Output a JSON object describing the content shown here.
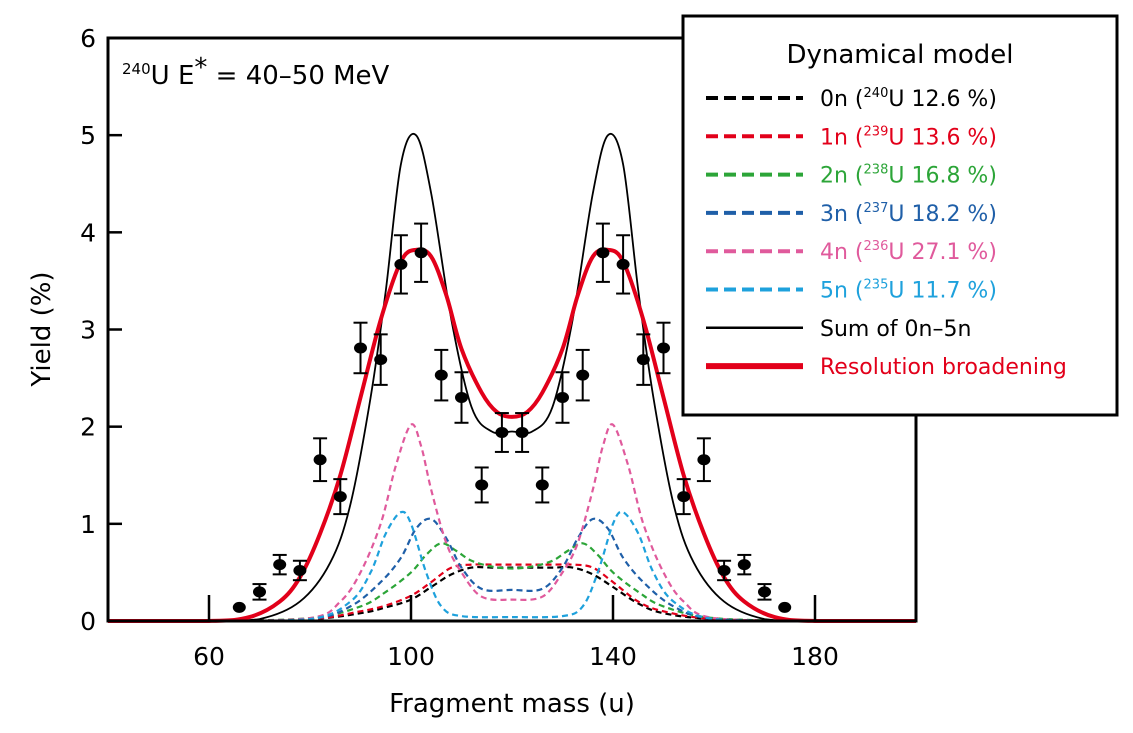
{
  "chart_data": {
    "type": "line",
    "annotation": {
      "nucleus_mass": "240",
      "nucleus": "U",
      "label": "E",
      "superscript": "*",
      "rest": " = 40–50 MeV"
    },
    "xlabel": "Fragment mass (u)",
    "ylabel": "Yield (%)",
    "xlim": [
      40,
      200
    ],
    "ylim": [
      0,
      6
    ],
    "xticks": [
      60,
      100,
      140,
      180
    ],
    "yticks": [
      0,
      1,
      2,
      3,
      4,
      5,
      6
    ],
    "legend": {
      "position": "top-right",
      "title": "Dynamical model",
      "entries": [
        {
          "key": "0n",
          "label": "0n (",
          "sup": "240",
          "rest": "U 12.6 %)",
          "color": "#000000",
          "style": "dashed"
        },
        {
          "key": "1n",
          "label": "1n (",
          "sup": "239",
          "rest": "U 13.6 %)",
          "color": "#e2001a",
          "style": "dashed"
        },
        {
          "key": "2n",
          "label": "2n (",
          "sup": "238",
          "rest": "U 16.8 %)",
          "color": "#2ca538",
          "style": "dashed"
        },
        {
          "key": "3n",
          "label": "3n (",
          "sup": "237",
          "rest": "U 18.2 %)",
          "color": "#1f5fa8",
          "style": "dashed"
        },
        {
          "key": "4n",
          "label": "4n (",
          "sup": "236",
          "rest": "U 27.1 %)",
          "color": "#e05a9c",
          "style": "dashed"
        },
        {
          "key": "5n",
          "label": "5n (",
          "sup": "235",
          "rest": "U 11.7 %)",
          "color": "#1ea1dc",
          "style": "dashed"
        },
        {
          "key": "sum",
          "label": "Sum of 0n–5n",
          "sup": "",
          "rest": "",
          "color": "#000000",
          "style": "solid-thin"
        },
        {
          "key": "res",
          "label": "Resolution broadening",
          "sup": "",
          "rest": "",
          "color": "#e2001a",
          "style": "solid-thick"
        }
      ]
    },
    "series": [
      {
        "key": "0n",
        "x": [
          40,
          60,
          80,
          90,
          95,
          100,
          104,
          108,
          112,
          116,
          120,
          124,
          128,
          132,
          136,
          140,
          145,
          150,
          160,
          180,
          200
        ],
        "y": [
          0,
          0,
          0.02,
          0.08,
          0.14,
          0.22,
          0.35,
          0.48,
          0.55,
          0.55,
          0.55,
          0.55,
          0.55,
          0.55,
          0.48,
          0.35,
          0.18,
          0.08,
          0.02,
          0,
          0
        ]
      },
      {
        "key": "1n",
        "x": [
          40,
          60,
          80,
          90,
          95,
          100,
          104,
          108,
          112,
          116,
          120,
          124,
          128,
          132,
          136,
          140,
          145,
          150,
          160,
          180,
          200
        ],
        "y": [
          0,
          0,
          0.02,
          0.1,
          0.16,
          0.26,
          0.4,
          0.55,
          0.58,
          0.58,
          0.58,
          0.58,
          0.58,
          0.58,
          0.55,
          0.4,
          0.2,
          0.1,
          0.02,
          0,
          0
        ]
      },
      {
        "key": "2n",
        "x": [
          40,
          60,
          80,
          90,
          95,
          100,
          103,
          106,
          109,
          112,
          116,
          120,
          124,
          128,
          131,
          134,
          137,
          140,
          145,
          150,
          160,
          180,
          200
        ],
        "y": [
          0,
          0,
          0.03,
          0.15,
          0.3,
          0.5,
          0.68,
          0.8,
          0.72,
          0.62,
          0.56,
          0.54,
          0.56,
          0.62,
          0.72,
          0.8,
          0.68,
          0.5,
          0.3,
          0.15,
          0.03,
          0,
          0
        ]
      },
      {
        "key": "3n",
        "x": [
          40,
          60,
          80,
          88,
          94,
          98,
          101,
          104,
          107,
          110,
          114,
          120,
          126,
          130,
          133,
          136,
          139,
          142,
          146,
          152,
          160,
          180,
          200
        ],
        "y": [
          0,
          0,
          0.02,
          0.15,
          0.4,
          0.65,
          0.95,
          1.05,
          0.85,
          0.55,
          0.33,
          0.32,
          0.33,
          0.55,
          0.85,
          1.05,
          0.95,
          0.65,
          0.4,
          0.15,
          0.02,
          0,
          0
        ]
      },
      {
        "key": "4n",
        "x": [
          40,
          60,
          80,
          86,
          90,
          94,
          97,
          100,
          102,
          104,
          107,
          110,
          114,
          120,
          126,
          130,
          133,
          136,
          138,
          140,
          143,
          146,
          150,
          154,
          160,
          180,
          200
        ],
        "y": [
          0,
          0,
          0.03,
          0.2,
          0.5,
          1.0,
          1.6,
          2.02,
          1.8,
          1.35,
          0.8,
          0.5,
          0.25,
          0.22,
          0.25,
          0.5,
          0.8,
          1.35,
          1.8,
          2.02,
          1.6,
          1.0,
          0.5,
          0.2,
          0.03,
          0,
          0
        ]
      },
      {
        "key": "5n",
        "x": [
          40,
          60,
          80,
          88,
          92,
          95,
          98,
          100,
          103,
          106,
          110,
          120,
          130,
          134,
          137,
          140,
          142,
          145,
          148,
          152,
          160,
          180,
          200
        ],
        "y": [
          0,
          0,
          0.02,
          0.2,
          0.5,
          0.9,
          1.12,
          1.0,
          0.5,
          0.15,
          0.05,
          0.04,
          0.05,
          0.15,
          0.5,
          1.0,
          1.12,
          0.9,
          0.5,
          0.2,
          0.02,
          0,
          0
        ]
      },
      {
        "key": "sum",
        "x": [
          40,
          60,
          70,
          78,
          84,
          88,
          92,
          95,
          98,
          101,
          104,
          108,
          112,
          116,
          120,
          124,
          128,
          132,
          136,
          139,
          142,
          145,
          148,
          152,
          156,
          162,
          170,
          180,
          200
        ],
        "y": [
          0,
          0,
          0.02,
          0.2,
          0.6,
          1.2,
          2.3,
          3.4,
          4.7,
          5.0,
          4.4,
          3.1,
          2.2,
          1.95,
          1.95,
          1.95,
          2.2,
          3.1,
          4.4,
          5.0,
          4.7,
          3.4,
          2.3,
          1.2,
          0.6,
          0.2,
          0.02,
          0,
          0
        ]
      },
      {
        "key": "res",
        "x": [
          40,
          60,
          68,
          74,
          78,
          82,
          86,
          90,
          94,
          98,
          101,
          104,
          107,
          110,
          114,
          117,
          120,
          123,
          126,
          130,
          133,
          136,
          139,
          142,
          146,
          150,
          154,
          158,
          162,
          166,
          172,
          180,
          200
        ],
        "y": [
          0,
          0,
          0.04,
          0.2,
          0.45,
          0.9,
          1.5,
          2.3,
          3.1,
          3.7,
          3.82,
          3.75,
          3.35,
          2.8,
          2.35,
          2.15,
          2.1,
          2.15,
          2.35,
          2.8,
          3.35,
          3.75,
          3.82,
          3.7,
          3.1,
          2.3,
          1.5,
          0.9,
          0.45,
          0.2,
          0.04,
          0,
          0
        ]
      }
    ],
    "data_points": {
      "x": [
        66,
        70,
        74,
        78,
        82,
        86,
        90,
        94,
        98,
        102,
        106,
        110,
        114,
        118,
        122,
        126,
        130,
        134,
        138,
        142,
        146,
        150,
        154,
        158,
        162,
        166,
        170,
        174
      ],
      "y": [
        0.14,
        0.3,
        0.58,
        0.52,
        1.66,
        1.28,
        2.81,
        2.69,
        3.67,
        3.79,
        2.53,
        2.3,
        1.4,
        1.94,
        1.94,
        1.4,
        2.3,
        2.53,
        3.79,
        3.67,
        2.69,
        2.81,
        1.28,
        1.66,
        0.52,
        0.58,
        0.3,
        0.14
      ],
      "err": [
        0,
        0.08,
        0.1,
        0.1,
        0.22,
        0.18,
        0.26,
        0.26,
        0.3,
        0.3,
        0.26,
        0.26,
        0.18,
        0.2,
        0.2,
        0.18,
        0.26,
        0.26,
        0.3,
        0.3,
        0.26,
        0.26,
        0.18,
        0.22,
        0.1,
        0.1,
        0.08,
        0
      ]
    }
  }
}
